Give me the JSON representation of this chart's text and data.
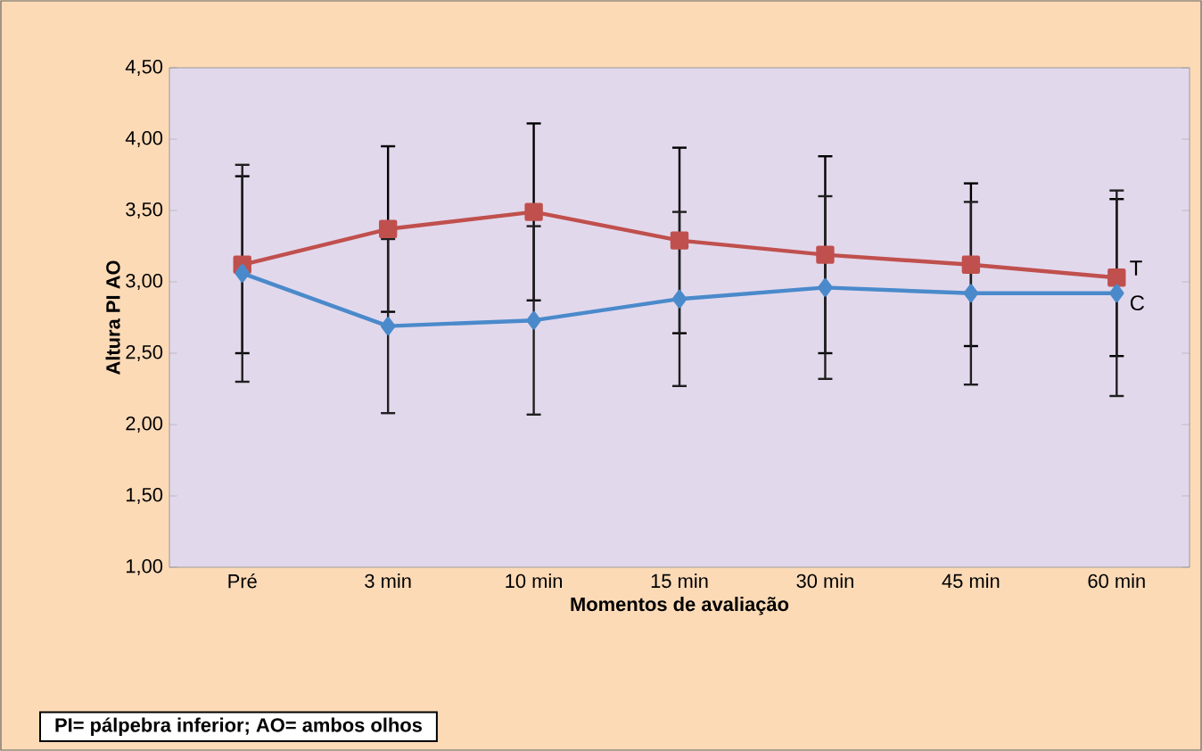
{
  "chart_data": {
    "type": "line",
    "xlabel": "Momentos de avaliação",
    "ylabel": "Altura PI AO",
    "categories": [
      "Pré",
      "3 min",
      "10 min",
      "15 min",
      "30 min",
      "45 min",
      "60 min"
    ],
    "series": [
      {
        "name": "T",
        "color": "#c0504d",
        "marker": "square",
        "values": [
          3.12,
          3.37,
          3.49,
          3.29,
          3.19,
          3.12,
          3.03
        ],
        "errors": [
          0.62,
          0.58,
          0.62,
          0.65,
          0.69,
          0.57,
          0.55
        ]
      },
      {
        "name": "C",
        "color": "#4a8acb",
        "marker": "diamond",
        "values": [
          3.06,
          2.69,
          2.73,
          2.88,
          2.96,
          2.92,
          2.92
        ],
        "errors": [
          0.76,
          0.61,
          0.66,
          0.61,
          0.64,
          0.64,
          0.72
        ]
      }
    ],
    "ylim": [
      1,
      4.5
    ],
    "yticks": [
      {
        "value": 1,
        "label": "1,00"
      },
      {
        "value": 1.5,
        "label": "1,50"
      },
      {
        "value": 2,
        "label": "2,00"
      },
      {
        "value": 2.5,
        "label": "2,50"
      },
      {
        "value": 3,
        "label": "3,00"
      },
      {
        "value": 3.5,
        "label": "3,50"
      },
      {
        "value": 4,
        "label": "4,00"
      },
      {
        "value": 4.5,
        "label": "4,50"
      }
    ],
    "grid": false,
    "legend": false,
    "line_style": "solid",
    "annotations": [
      "PI= pálpebra inferior; AO= ambos olhos"
    ]
  }
}
